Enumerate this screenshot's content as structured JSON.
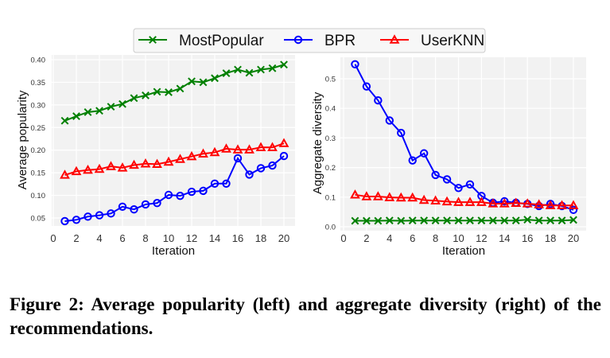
{
  "legend": {
    "placement": "top-center",
    "entries": [
      {
        "name": "MostPopular",
        "color": "#008000",
        "marker": "x"
      },
      {
        "name": "BPR",
        "color": "#0000ff",
        "marker": "o"
      },
      {
        "name": "UserKNN",
        "color": "#ff0000",
        "marker": "^"
      }
    ]
  },
  "caption": "Figure 2: Average popularity (left) and aggregate diversity (right) of the recommendations.",
  "chart_data": [
    {
      "type": "line",
      "title": "",
      "xlabel": "Iteration",
      "ylabel": "Average popularity",
      "xlim": [
        0,
        20
      ],
      "ylim": [
        0.025,
        0.405
      ],
      "xticks": [
        0,
        2,
        4,
        6,
        8,
        10,
        12,
        14,
        16,
        18,
        20
      ],
      "xtick_labels": [
        "0",
        "2",
        "4",
        "6",
        "8",
        "10",
        "12",
        "14",
        "16",
        "18",
        "20"
      ],
      "yticks": [
        0.05,
        0.1,
        0.15,
        0.2,
        0.25,
        0.3,
        0.35,
        0.4
      ],
      "ytick_labels": [
        "0.05",
        "0.10",
        "0.15",
        "0.20",
        "0.25",
        "0.30",
        "0.35",
        "0.40"
      ],
      "grid": true,
      "x": [
        1,
        2,
        3,
        4,
        5,
        6,
        7,
        8,
        9,
        10,
        11,
        12,
        13,
        14,
        15,
        16,
        17,
        18,
        19,
        20
      ],
      "series": [
        {
          "name": "MostPopular",
          "color": "#008000",
          "marker": "x",
          "values": [
            0.265,
            0.275,
            0.284,
            0.287,
            0.296,
            0.302,
            0.315,
            0.321,
            0.329,
            0.328,
            0.336,
            0.352,
            0.35,
            0.359,
            0.37,
            0.378,
            0.371,
            0.378,
            0.381,
            0.389
          ]
        },
        {
          "name": "BPR",
          "color": "#0000ff",
          "marker": "o",
          "values": [
            0.043,
            0.046,
            0.053,
            0.056,
            0.06,
            0.075,
            0.069,
            0.08,
            0.083,
            0.101,
            0.099,
            0.108,
            0.11,
            0.126,
            0.126,
            0.182,
            0.146,
            0.16,
            0.166,
            0.187
          ]
        },
        {
          "name": "UserKNN",
          "color": "#ff0000",
          "marker": "^",
          "values": [
            0.145,
            0.153,
            0.156,
            0.158,
            0.164,
            0.161,
            0.167,
            0.17,
            0.169,
            0.174,
            0.18,
            0.186,
            0.192,
            0.195,
            0.203,
            0.201,
            0.201,
            0.206,
            0.206,
            0.215
          ]
        }
      ]
    },
    {
      "type": "line",
      "title": "",
      "xlabel": "Iteration",
      "ylabel": "Aggregate diversity",
      "xlim": [
        0,
        20
      ],
      "ylim": [
        -0.01,
        0.575
      ],
      "xticks": [
        0,
        2,
        4,
        6,
        8,
        10,
        12,
        14,
        16,
        18,
        20
      ],
      "xtick_labels": [
        "0",
        "2",
        "4",
        "6",
        "8",
        "10",
        "12",
        "14",
        "16",
        "18",
        "20"
      ],
      "yticks": [
        0.0,
        0.1,
        0.2,
        0.3,
        0.4,
        0.5
      ],
      "ytick_labels": [
        "0.0",
        "0.1",
        "0.2",
        "0.3",
        "0.4",
        "0.5"
      ],
      "grid": true,
      "x": [
        1,
        2,
        3,
        4,
        5,
        6,
        7,
        8,
        9,
        10,
        11,
        12,
        13,
        14,
        15,
        16,
        17,
        18,
        19,
        20
      ],
      "series": [
        {
          "name": "MostPopular",
          "color": "#008000",
          "marker": "x",
          "values": [
            0.02,
            0.02,
            0.02,
            0.021,
            0.02,
            0.021,
            0.021,
            0.021,
            0.021,
            0.021,
            0.021,
            0.021,
            0.021,
            0.021,
            0.021,
            0.024,
            0.021,
            0.021,
            0.021,
            0.023
          ]
        },
        {
          "name": "BPR",
          "color": "#0000ff",
          "marker": "o",
          "values": [
            0.549,
            0.474,
            0.427,
            0.359,
            0.317,
            0.224,
            0.248,
            0.175,
            0.16,
            0.131,
            0.143,
            0.104,
            0.081,
            0.086,
            0.081,
            0.077,
            0.07,
            0.077,
            0.07,
            0.057
          ]
        },
        {
          "name": "UserKNN",
          "color": "#ff0000",
          "marker": "^",
          "values": [
            0.108,
            0.102,
            0.102,
            0.099,
            0.098,
            0.098,
            0.09,
            0.088,
            0.085,
            0.083,
            0.083,
            0.083,
            0.078,
            0.078,
            0.08,
            0.078,
            0.075,
            0.072,
            0.072,
            0.072
          ]
        }
      ]
    }
  ]
}
